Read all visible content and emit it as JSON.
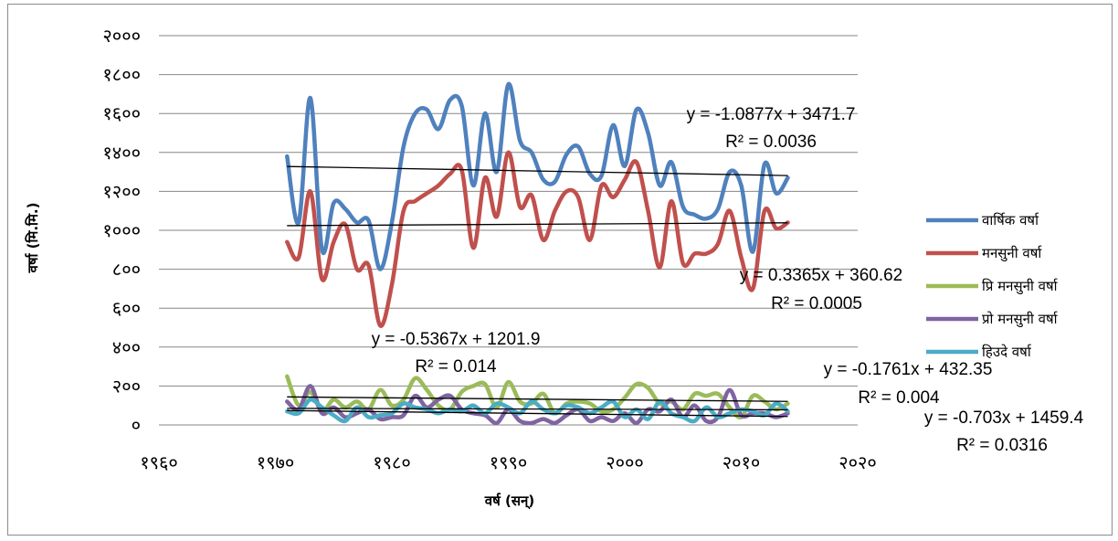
{
  "chart_data": {
    "type": "line",
    "title": "",
    "xlabel": "वर्ष (सन्)",
    "ylabel": "वर्षा (मि.मि.)",
    "xlim": [
      1960,
      2020
    ],
    "ylim": [
      0,
      2000
    ],
    "x_ticks": [
      1960,
      1970,
      1980,
      1990,
      2000,
      2010,
      2020
    ],
    "x_tick_labels": [
      "१९६०",
      "१९७०",
      "१९८०",
      "१९९०",
      "२०००",
      "२०१०",
      "२०२०"
    ],
    "y_ticks": [
      0,
      200,
      400,
      600,
      800,
      1000,
      1200,
      1400,
      1600,
      1800,
      2000
    ],
    "y_tick_labels": [
      "०",
      "२००",
      "४००",
      "६००",
      "८००",
      "१०००",
      "१२००",
      "१४००",
      "१६००",
      "१८००",
      "२०००"
    ],
    "grid": true,
    "legend_position": "right",
    "x": [
      1971,
      1972,
      1973,
      1974,
      1975,
      1976,
      1977,
      1978,
      1979,
      1980,
      1981,
      1982,
      1983,
      1984,
      1985,
      1986,
      1987,
      1988,
      1989,
      1990,
      1991,
      1992,
      1993,
      1994,
      1995,
      1996,
      1997,
      1998,
      1999,
      2000,
      2001,
      2002,
      2003,
      2004,
      2005,
      2006,
      2007,
      2008,
      2009,
      2010,
      2011,
      2012,
      2013,
      2014
    ],
    "series": [
      {
        "name": "वार्षिक वर्षा",
        "color": "#4f81bd",
        "values": [
          1380,
          1040,
          1680,
          900,
          1140,
          1110,
          1040,
          1050,
          800,
          1040,
          1430,
          1600,
          1620,
          1520,
          1670,
          1640,
          1230,
          1600,
          1300,
          1750,
          1460,
          1400,
          1260,
          1250,
          1390,
          1430,
          1290,
          1280,
          1540,
          1330,
          1620,
          1500,
          1230,
          1350,
          1120,
          1080,
          1060,
          1110,
          1300,
          1230,
          890,
          1340,
          1190,
          1270
        ]
      },
      {
        "name": "मनसुनी वर्षा",
        "color": "#c0504d",
        "values": [
          940,
          860,
          1200,
          750,
          940,
          1030,
          800,
          820,
          510,
          720,
          1100,
          1150,
          1190,
          1230,
          1290,
          1310,
          910,
          1270,
          1070,
          1400,
          1120,
          1180,
          950,
          1100,
          1200,
          1170,
          950,
          1230,
          1170,
          1260,
          1350,
          1100,
          810,
          1150,
          830,
          880,
          880,
          930,
          1100,
          860,
          700,
          1100,
          1010,
          1040
        ]
      },
      {
        "name": "प्रि मनसुनी वर्षा",
        "color": "#9bbb59",
        "values": [
          250,
          100,
          170,
          70,
          130,
          90,
          120,
          80,
          180,
          100,
          130,
          240,
          180,
          100,
          80,
          170,
          200,
          210,
          90,
          220,
          120,
          110,
          160,
          60,
          110,
          120,
          110,
          70,
          80,
          140,
          210,
          190,
          110,
          120,
          80,
          160,
          150,
          160,
          90,
          40,
          150,
          120,
          80,
          110
        ]
      },
      {
        "name": "प्रो मनसुनी वर्षा",
        "color": "#8064a2",
        "values": [
          120,
          80,
          200,
          60,
          90,
          40,
          60,
          80,
          30,
          40,
          50,
          150,
          90,
          130,
          150,
          80,
          60,
          50,
          10,
          80,
          20,
          10,
          30,
          10,
          50,
          80,
          20,
          40,
          20,
          60,
          10,
          80,
          70,
          130,
          40,
          100,
          20,
          40,
          180,
          50,
          60,
          60,
          40,
          60
        ]
      },
      {
        "name": "हिउदे वर्षा",
        "color": "#4bacc6",
        "values": [
          70,
          60,
          130,
          90,
          50,
          20,
          90,
          40,
          50,
          60,
          110,
          90,
          80,
          60,
          80,
          70,
          100,
          60,
          110,
          90,
          60,
          120,
          80,
          60,
          100,
          90,
          60,
          90,
          120,
          40,
          80,
          30,
          120,
          60,
          40,
          20,
          90,
          40,
          60,
          80,
          70,
          50,
          110,
          70
        ]
      }
    ],
    "trendlines": [
      {
        "series": "वार्षिक वर्षा",
        "equation": "y = -1.0877x + 3471.7",
        "r2": "R² = 0.0036",
        "slope": -1.0877,
        "intercept": 3471.7
      },
      {
        "series": "मनसुनी वर्षा",
        "equation": "y = 0.3365x + 360.62",
        "r2": "R² = 0.0005",
        "slope": 0.3365,
        "intercept": 360.62
      },
      {
        "series": "प्रि मनसुनी वर्षा",
        "equation": "y = -0.5367x + 1201.9",
        "r2": "R² = 0.014",
        "slope": -0.5367,
        "intercept": 1201.9
      },
      {
        "series": "प्रो मनसुनी वर्षा",
        "equation": "y = -0.703x + 1459.4",
        "r2": "R² = 0.0316",
        "slope": -0.703,
        "intercept": 1459.4
      },
      {
        "series": "हिउदे वर्षा",
        "equation": "y = -0.1761x + 432.35",
        "r2": "R² = 0.004",
        "slope": -0.1761,
        "intercept": 432.35
      }
    ]
  }
}
